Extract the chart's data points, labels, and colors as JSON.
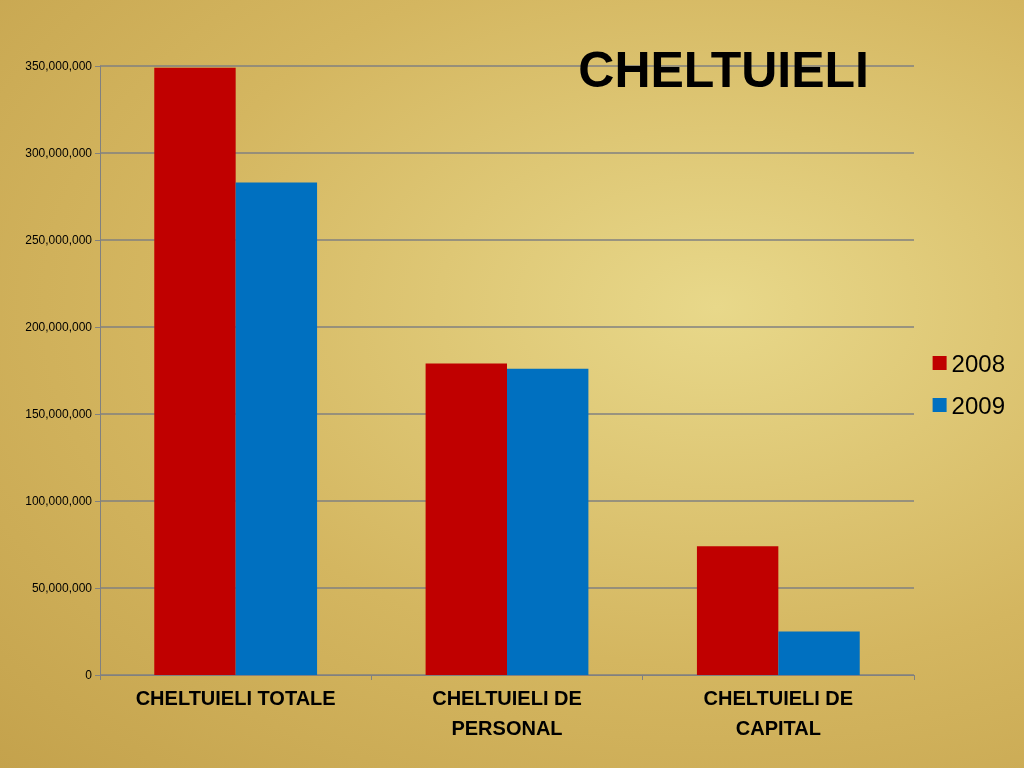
{
  "chart_data": {
    "type": "bar",
    "title": "CHELTUIELI",
    "categories": [
      "CHELTUIELI TOTALE",
      "CHELTUIELI DE\nPERSONAL",
      "CHELTUIELI DE\nCAPITAL"
    ],
    "series": [
      {
        "name": "2008",
        "color": "#c00000",
        "values": [
          349000000,
          179000000,
          74000000
        ]
      },
      {
        "name": "2009",
        "color": "#0070c0",
        "values": [
          283000000,
          176000000,
          25000000
        ]
      }
    ],
    "ylim": [
      0,
      350000000
    ],
    "yticks": [
      {
        "value": 0,
        "label": "0"
      },
      {
        "value": 50000000,
        "label": "50,000,000"
      },
      {
        "value": 100000000,
        "label": "100,000,000"
      },
      {
        "value": 150000000,
        "label": "150,000,000"
      },
      {
        "value": 200000000,
        "label": "200,000,000"
      },
      {
        "value": 250000000,
        "label": "250,000,000"
      },
      {
        "value": 300000000,
        "label": "300,000,000"
      },
      {
        "value": 350000000,
        "label": "350,000,000"
      }
    ],
    "grid": "y",
    "legend": "right"
  }
}
